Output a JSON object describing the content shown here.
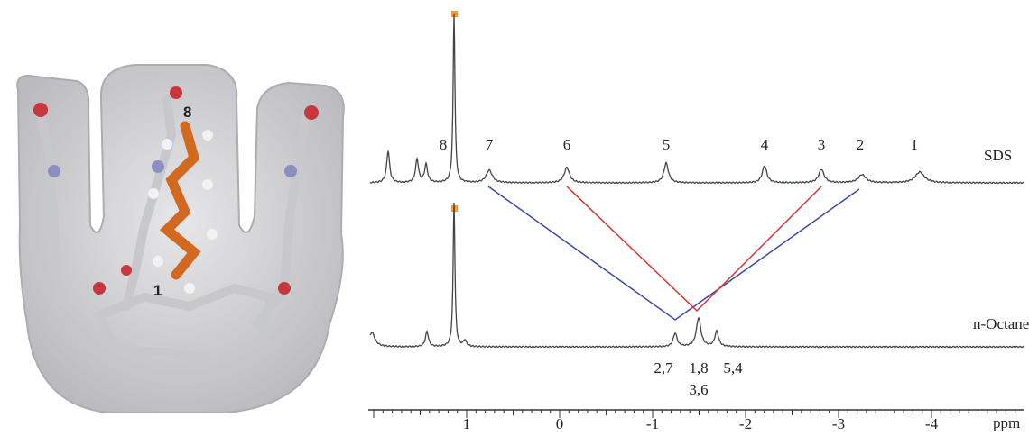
{
  "molecule": {
    "atom_labels": [
      "8",
      "1"
    ]
  },
  "spectrum": {
    "top_trace": {
      "name": "SDS",
      "peak_labels": [
        "8",
        "7",
        "6",
        "5",
        "4",
        "3",
        "2",
        "1"
      ]
    },
    "bottom_trace": {
      "name": "n-Octane",
      "peak_labels": [
        "2,7",
        "1,8",
        "5,4",
        "3,6"
      ]
    },
    "axis": {
      "ticks": [
        "1",
        "0",
        "-1",
        "-2",
        "-3",
        "-4"
      ],
      "label": "ppm"
    }
  }
}
